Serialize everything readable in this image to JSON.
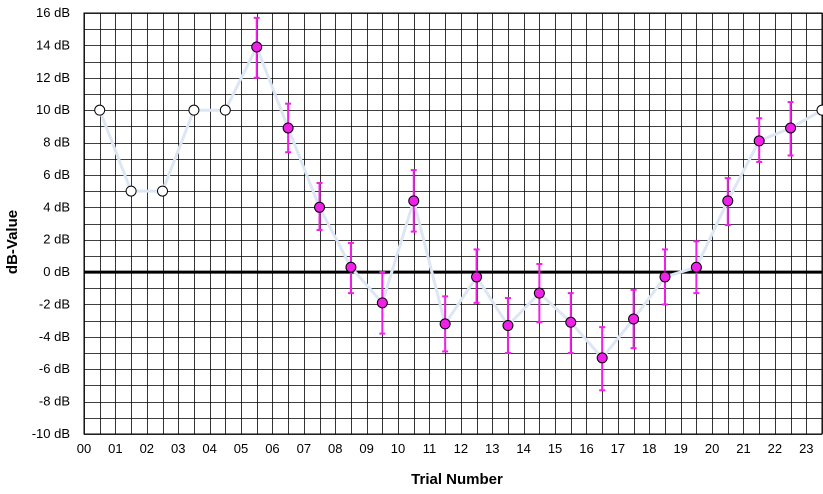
{
  "chart_data": {
    "type": "line",
    "xlabel": "Trial Number",
    "ylabel": "dB-Value",
    "x_ticks": [
      "00",
      "01",
      "02",
      "03",
      "04",
      "05",
      "06",
      "07",
      "08",
      "09",
      "10",
      "11",
      "12",
      "13",
      "14",
      "15",
      "16",
      "17",
      "18",
      "19",
      "20",
      "21",
      "22",
      "23"
    ],
    "y_ticks": [
      {
        "value": 16,
        "label": "16 dB"
      },
      {
        "value": 14,
        "label": "14 dB"
      },
      {
        "value": 12,
        "label": "12 dB"
      },
      {
        "value": 10,
        "label": "10 dB"
      },
      {
        "value": 8,
        "label": "8 dB"
      },
      {
        "value": 6,
        "label": "6 dB"
      },
      {
        "value": 4,
        "label": "4 dB"
      },
      {
        "value": 2,
        "label": "2 dB"
      },
      {
        "value": 0,
        "label": "0 dB"
      },
      {
        "value": -2,
        "label": "-2 dB"
      },
      {
        "value": -4,
        "label": "-4 dB"
      },
      {
        "value": -6,
        "label": "-6 dB"
      },
      {
        "value": -8,
        "label": "-8 dB"
      },
      {
        "value": -10,
        "label": "-10 dB"
      }
    ],
    "xlim": [
      0,
      23.5
    ],
    "ylim": [
      -10,
      16
    ],
    "grid": true,
    "points": [
      {
        "x": 0.5,
        "y": 10,
        "filled": false
      },
      {
        "x": 1.5,
        "y": 5,
        "filled": false
      },
      {
        "x": 2.5,
        "y": 5,
        "filled": false
      },
      {
        "x": 3.5,
        "y": 10,
        "filled": false
      },
      {
        "x": 4.5,
        "y": 10,
        "filled": false
      },
      {
        "x": 5.5,
        "y": 13.9,
        "filled": true,
        "err_low": 12.0,
        "err_high": 15.7
      },
      {
        "x": 6.5,
        "y": 8.9,
        "filled": true,
        "err_low": 7.4,
        "err_high": 10.4
      },
      {
        "x": 7.5,
        "y": 4.0,
        "filled": true,
        "err_low": 2.6,
        "err_high": 5.5
      },
      {
        "x": 8.5,
        "y": 0.3,
        "filled": true,
        "err_low": -1.3,
        "err_high": 1.8
      },
      {
        "x": 9.5,
        "y": -1.9,
        "filled": true,
        "err_low": -3.8,
        "err_high": 0.0
      },
      {
        "x": 10.5,
        "y": 4.4,
        "filled": true,
        "err_low": 2.5,
        "err_high": 6.3
      },
      {
        "x": 11.5,
        "y": -3.2,
        "filled": true,
        "err_low": -4.9,
        "err_high": -1.5
      },
      {
        "x": 12.5,
        "y": -0.3,
        "filled": true,
        "err_low": -1.9,
        "err_high": 1.4
      },
      {
        "x": 13.5,
        "y": -3.3,
        "filled": true,
        "err_low": -5.0,
        "err_high": -1.6
      },
      {
        "x": 14.5,
        "y": -1.3,
        "filled": true,
        "err_low": -3.1,
        "err_high": 0.5
      },
      {
        "x": 15.5,
        "y": -3.1,
        "filled": true,
        "err_low": -5.0,
        "err_high": -1.3
      },
      {
        "x": 16.5,
        "y": -5.3,
        "filled": true,
        "err_low": -7.3,
        "err_high": -3.4
      },
      {
        "x": 17.5,
        "y": -2.9,
        "filled": true,
        "err_low": -4.7,
        "err_high": -1.1
      },
      {
        "x": 18.5,
        "y": -0.3,
        "filled": true,
        "err_low": -2.0,
        "err_high": 1.4
      },
      {
        "x": 19.5,
        "y": 0.3,
        "filled": true,
        "err_low": -1.3,
        "err_high": 1.9
      },
      {
        "x": 20.5,
        "y": 4.4,
        "filled": true,
        "err_low": 2.9,
        "err_high": 5.8
      },
      {
        "x": 21.5,
        "y": 8.1,
        "filled": true,
        "err_low": 6.8,
        "err_high": 9.5
      },
      {
        "x": 22.5,
        "y": 8.9,
        "filled": true,
        "err_low": 7.2,
        "err_high": 10.5
      },
      {
        "x": 23.5,
        "y": 10,
        "filled": false
      }
    ],
    "colors": {
      "line": "#dde6f5",
      "marker_filled": "#f020e8",
      "error_bar": "#f020e8",
      "marker_open": "#ffffff",
      "grid": "#000000",
      "zero_line": "#000000"
    }
  }
}
